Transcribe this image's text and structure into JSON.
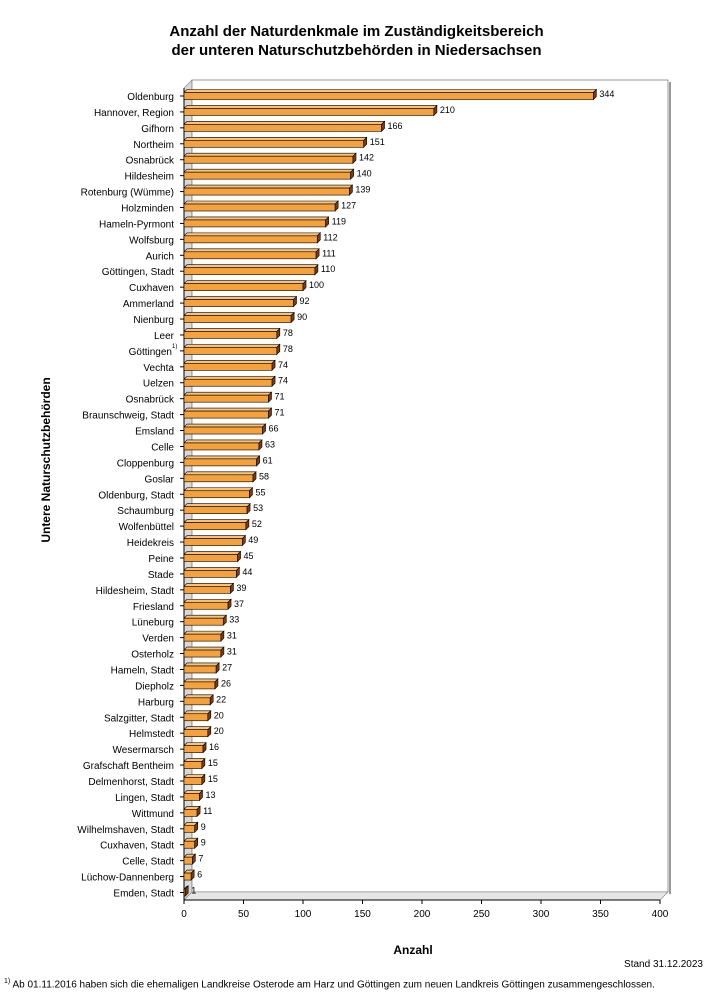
{
  "chart_data": {
    "type": "bar",
    "orientation": "horizontal",
    "title_line1": "Anzahl der Naturdenkmale im Zuständigkeitsbereich",
    "title_line2": "der unteren Naturschutzbehörden in Niedersachsen",
    "xlabel": "Anzahl",
    "ylabel": "Untere Naturschutzbehörden",
    "xlim": [
      0,
      400
    ],
    "xticks": [
      0,
      50,
      100,
      150,
      200,
      250,
      300,
      350,
      400
    ],
    "grid": false,
    "bar_color": "#F5A13C",
    "bar_edge_color": "#000000",
    "categories": [
      "Oldenburg",
      "Hannover, Region",
      "Gifhorn",
      "Northeim",
      "Osnabrück",
      "Hildesheim",
      "Rotenburg (Wümme)",
      "Holzminden",
      "Hameln-Pyrmont",
      "Wolfsburg",
      "Aurich",
      "Göttingen, Stadt",
      "Cuxhaven",
      "Ammerland",
      "Nienburg",
      "Leer",
      "Göttingen",
      "Vechta",
      "Uelzen",
      "Osnabrück",
      "Braunschweig, Stadt",
      "Emsland",
      "Celle",
      "Cloppenburg",
      "Goslar",
      "Oldenburg, Stadt",
      "Schaumburg",
      "Wolfenbüttel",
      "Heidekreis",
      "Peine",
      "Stade",
      "Hildesheim, Stadt",
      "Friesland",
      "Lüneburg",
      "Verden",
      "Osterholz",
      "Hameln, Stadt",
      "Diepholz",
      "Harburg",
      "Salzgitter, Stadt",
      "Helmstedt",
      "Wesermarsch",
      "Grafschaft Bentheim",
      "Delmenhorst, Stadt",
      "Lingen, Stadt",
      "Wittmund",
      "Wilhelmshaven, Stadt",
      "Cuxhaven, Stadt",
      "Celle, Stadt",
      "Lüchow-Dannenberg",
      "Emden, Stadt"
    ],
    "values": [
      344,
      210,
      166,
      151,
      142,
      140,
      139,
      127,
      119,
      112,
      111,
      110,
      100,
      92,
      90,
      78,
      78,
      74,
      74,
      71,
      71,
      66,
      63,
      61,
      58,
      55,
      53,
      52,
      49,
      45,
      44,
      39,
      37,
      33,
      31,
      31,
      27,
      26,
      22,
      20,
      20,
      16,
      15,
      15,
      13,
      11,
      9,
      9,
      7,
      6,
      1
    ],
    "category_superscripts": {
      "16": "1)"
    }
  },
  "stand": "Stand 31.12.2023",
  "footnote_mark": "1)",
  "footnote": " Ab 01.11.2016 haben sich die ehemaligen Landkreise Osterode am Harz und Göttingen zum neuen Landkreis Göttingen zusammengeschlossen."
}
